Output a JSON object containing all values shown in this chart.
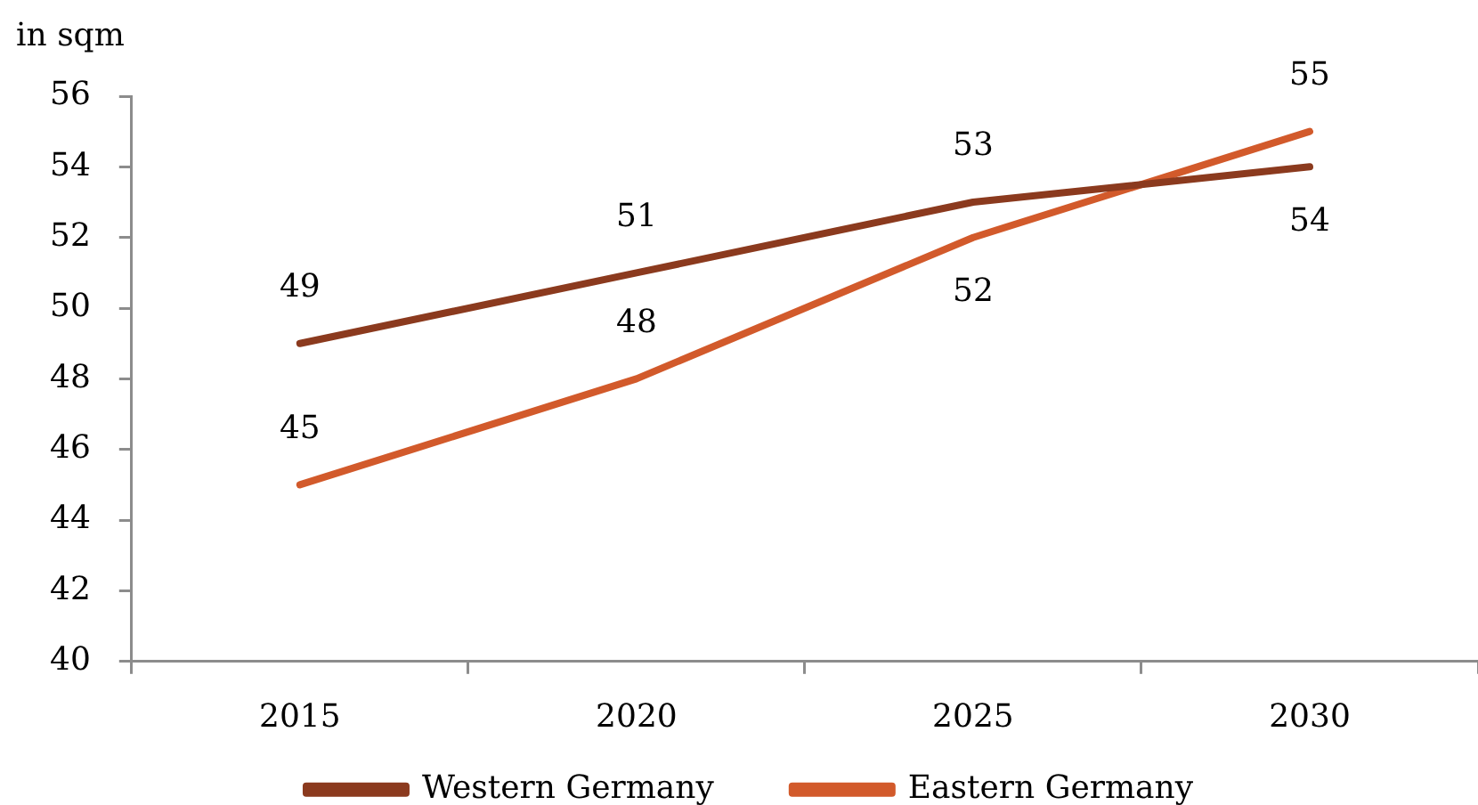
{
  "chart_data": {
    "type": "line",
    "ylabel": "in sqm",
    "categories": [
      "2015",
      "2020",
      "2025",
      "2030"
    ],
    "series": [
      {
        "name": "Western Germany",
        "color": "#8b3a1e",
        "values": [
          49,
          51,
          53,
          54
        ]
      },
      {
        "name": "Eastern Germany",
        "color": "#d25a2b",
        "values": [
          45,
          48,
          52,
          55
        ]
      }
    ],
    "ylim": [
      40,
      56
    ],
    "yticks": [
      40,
      42,
      44,
      46,
      48,
      50,
      52,
      54,
      56
    ],
    "data_labels": true,
    "legend": "bottom"
  }
}
